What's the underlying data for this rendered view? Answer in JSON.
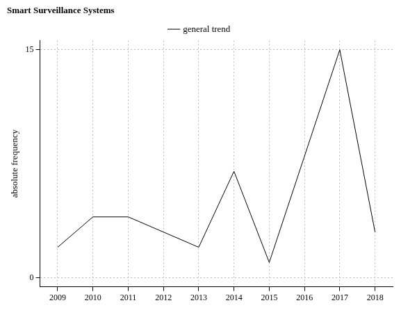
{
  "chart_data": {
    "type": "line",
    "title": "Smart Surveillance Systems",
    "y_label": "absolute frequency",
    "categories": [
      "2009",
      "2010",
      "2011",
      "2012",
      "2013",
      "2014",
      "2015",
      "2016",
      "2017",
      "2018"
    ],
    "series": [
      {
        "name": "general trend",
        "color": "#000000",
        "values": [
          2,
          4,
          4,
          3,
          2,
          7,
          1,
          8,
          15,
          3
        ]
      }
    ],
    "ylim": [
      -0.6,
      15.6
    ],
    "yticks": [
      0,
      15
    ],
    "grid": true,
    "legend": "top"
  }
}
